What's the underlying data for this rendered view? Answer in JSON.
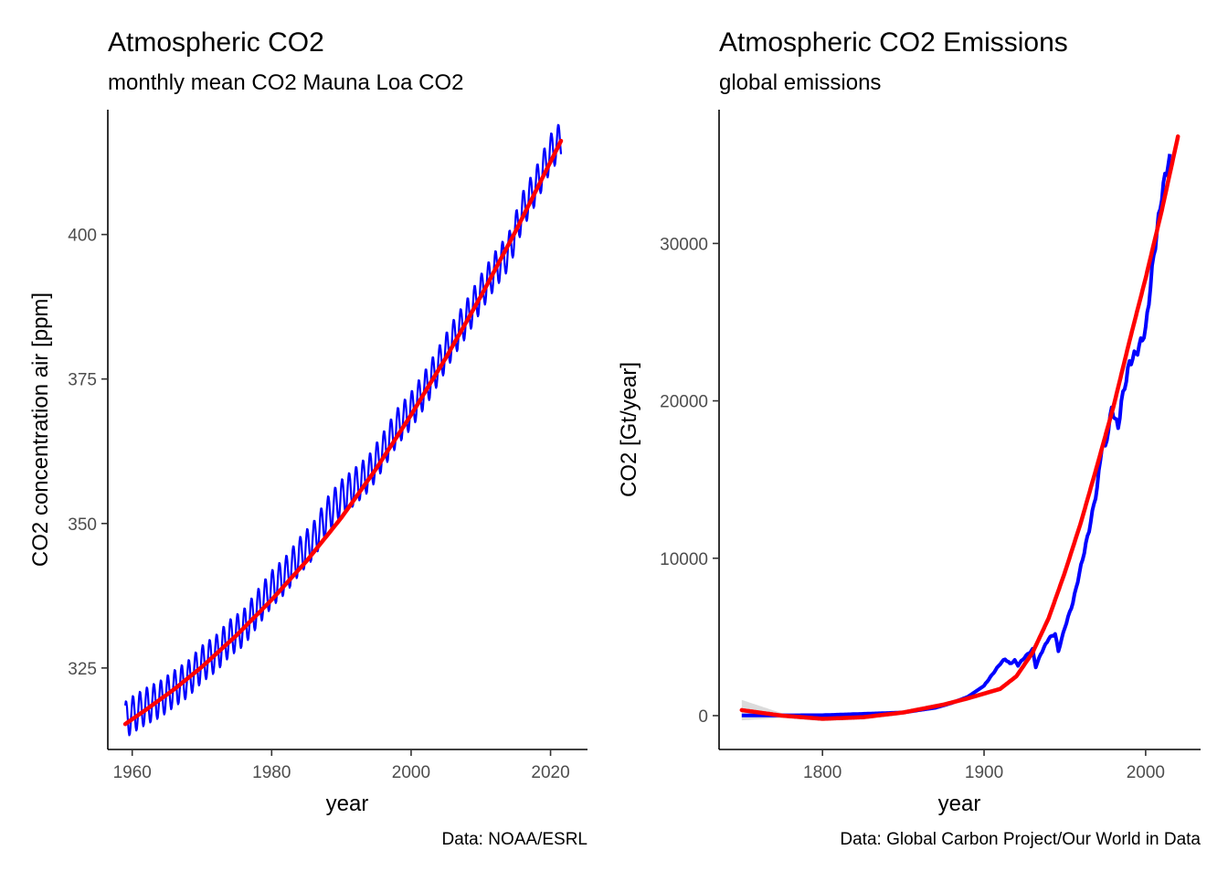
{
  "colors": {
    "data_line": "#0000ff",
    "fit_line": "#ff0000",
    "fit_band": "#bebebe"
  },
  "chart_data": [
    {
      "type": "line",
      "title": "Atmospheric CO2",
      "subtitle": "monthly mean CO2 Mauna Loa CO2",
      "xlabel": "year",
      "ylabel": "CO2 concentration air [ppm]",
      "caption": "Data: NOAA/ESRL",
      "xlim": [
        1956.5,
        2025.3
      ],
      "ylim": [
        310.9,
        421.6
      ],
      "xticks": [
        1960,
        1980,
        2000,
        2020
      ],
      "yticks": [
        325,
        350,
        375,
        400
      ],
      "grid": false,
      "legend": "none",
      "series": [
        {
          "kind": "monthly",
          "color": "#0000ff",
          "x": [
            1959,
            1960,
            1962,
            1964,
            1966,
            1968,
            1970,
            1972,
            1974,
            1976,
            1978,
            1980,
            1982,
            1984,
            1986,
            1988,
            1990,
            1992,
            1994,
            1996,
            1998,
            2000,
            2002,
            2004,
            2006,
            2008,
            2010,
            2012,
            2014,
            2016,
            2018,
            2020,
            2021.5
          ],
          "y": [
            316.0,
            316.9,
            318.4,
            319.6,
            321.4,
            323.1,
            325.7,
            327.5,
            330.2,
            332.0,
            335.4,
            338.7,
            341.1,
            344.4,
            347.1,
            351.4,
            354.4,
            356.5,
            358.8,
            362.6,
            366.7,
            369.6,
            373.3,
            377.5,
            381.9,
            385.6,
            389.9,
            393.8,
            397.1,
            404.2,
            408.7,
            414.2,
            416.4
          ],
          "seasonal_amplitude": 3.2
        },
        {
          "kind": "fit",
          "color": "#ff0000",
          "x": [
            1959,
            1962,
            1966,
            1970,
            1975,
            1980,
            1985,
            1990,
            1995,
            2000,
            2005,
            2010,
            2015,
            2021.5
          ],
          "y": [
            315.3,
            317.8,
            321.3,
            325.2,
            330.7,
            336.8,
            343.5,
            351.0,
            359.5,
            368.8,
            378.7,
            389.3,
            400.6,
            416.2
          ]
        }
      ]
    },
    {
      "type": "line",
      "title": "Atmospheric CO2 Emissions",
      "subtitle": "global emissions",
      "xlabel": "year",
      "ylabel": "CO2 [Gt/year]",
      "caption": "Data: Global Carbon Project/Our World in Data",
      "xlim": [
        1736,
        2034
      ],
      "ylim": [
        -2150,
        38500
      ],
      "xticks": [
        1800,
        1900,
        2000
      ],
      "yticks": [
        0,
        10000,
        20000,
        30000
      ],
      "grid": false,
      "legend": "none",
      "series": [
        {
          "kind": "annual",
          "color": "#0000ff",
          "x": [
            1750,
            1800,
            1850,
            1870,
            1880,
            1890,
            1900,
            1905,
            1910,
            1913,
            1916,
            1919,
            1921,
            1925,
            1930,
            1932,
            1935,
            1940,
            1944,
            1946,
            1950,
            1955,
            1960,
            1965,
            1970,
            1973,
            1975,
            1979,
            1980,
            1983,
            1985,
            1990,
            1995,
            2000,
            2005,
            2010,
            2014,
            2015
          ],
          "y": [
            10,
            30,
            200,
            500,
            800,
            1200,
            1900,
            2600,
            3300,
            3600,
            3300,
            3500,
            3200,
            3700,
            4200,
            3100,
            3900,
            4900,
            5200,
            4100,
            5600,
            7200,
            9500,
            11800,
            14500,
            17200,
            17000,
            19500,
            19200,
            18300,
            19900,
            22400,
            23200,
            24500,
            29200,
            33100,
            35200,
            35300
          ]
        },
        {
          "kind": "fit",
          "color": "#ff0000",
          "x": [
            1750,
            1775,
            1800,
            1825,
            1850,
            1875,
            1890,
            1900,
            1910,
            1920,
            1930,
            1940,
            1950,
            1960,
            1970,
            1980,
            1990,
            2000,
            2010,
            2020
          ],
          "y": [
            350,
            0,
            -200,
            -100,
            200,
            700,
            1100,
            1400,
            1700,
            2500,
            4000,
            6200,
            9100,
            12300,
            15900,
            19600,
            23800,
            27800,
            32100,
            36800
          ]
        }
      ]
    }
  ]
}
